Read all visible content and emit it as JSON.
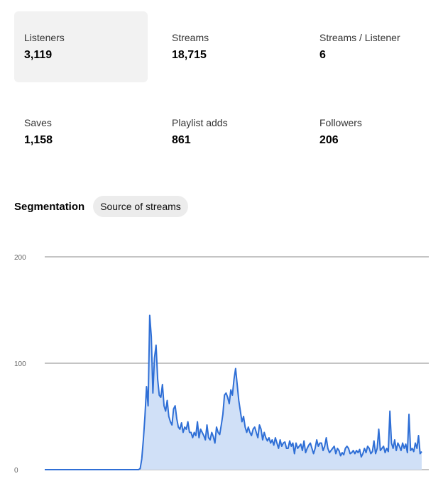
{
  "stats": [
    {
      "label": "Listeners",
      "value": "3,119",
      "selected": true
    },
    {
      "label": "Streams",
      "value": "18,715"
    },
    {
      "label": "Streams / Listener",
      "value": "6"
    },
    {
      "label": "Saves",
      "value": "1,158"
    },
    {
      "label": "Playlist adds",
      "value": "861"
    },
    {
      "label": "Followers",
      "value": "206"
    }
  ],
  "segmentation": {
    "title": "Segmentation",
    "chip_label": "Source of streams"
  },
  "colors": {
    "line": "#2f6fd6",
    "fill": "#d0e0f7",
    "grid": "#888888",
    "selected_card": "#f2f2f2"
  },
  "chart_data": {
    "type": "area",
    "title": "",
    "xlabel": "",
    "ylabel": "",
    "ylim": [
      0,
      200
    ],
    "yticks": [
      "0",
      "100",
      "200"
    ],
    "grid": true,
    "series": [
      {
        "values": [
          0,
          0,
          0,
          0,
          0,
          0,
          0,
          0,
          0,
          0,
          0,
          0,
          0,
          0,
          0,
          0,
          0,
          0,
          0,
          0,
          0,
          0,
          0,
          0,
          0,
          0,
          0,
          0,
          0,
          0,
          0,
          0,
          0,
          0,
          0,
          0,
          0,
          0,
          0,
          0,
          0,
          0,
          0,
          0,
          0,
          0,
          0,
          0,
          0,
          0,
          0,
          0,
          0,
          0,
          0,
          0,
          0,
          0,
          0,
          0,
          1,
          10,
          28,
          50,
          78,
          60,
          145,
          125,
          72,
          105,
          117,
          85,
          70,
          68,
          80,
          60,
          55,
          65,
          50,
          45,
          42,
          57,
          60,
          48,
          40,
          38,
          44,
          35,
          40,
          38,
          45,
          35,
          35,
          30,
          35,
          32,
          45,
          30,
          38,
          35,
          32,
          28,
          42,
          30,
          28,
          35,
          31,
          25,
          40,
          35,
          33,
          42,
          52,
          70,
          72,
          68,
          62,
          75,
          70,
          85,
          95,
          80,
          65,
          55,
          45,
          50,
          40,
          35,
          40,
          35,
          32,
          38,
          40,
          35,
          30,
          42,
          38,
          28,
          35,
          30,
          27,
          30,
          25,
          28,
          23,
          30,
          25,
          20,
          28,
          22,
          25,
          26,
          20,
          20,
          27,
          22,
          25,
          15,
          25,
          20,
          22,
          24,
          18,
          27,
          16,
          20,
          23,
          25,
          20,
          15,
          20,
          28,
          22,
          25,
          25,
          18,
          22,
          30,
          20,
          16,
          18,
          20,
          22,
          15,
          20,
          18,
          13,
          16,
          14,
          20,
          22,
          20,
          15,
          16,
          18,
          15,
          18,
          16,
          19,
          12,
          15,
          20,
          16,
          22,
          20,
          15,
          17,
          27,
          15,
          20,
          38,
          18,
          20,
          22,
          16,
          20,
          17,
          55,
          25,
          20,
          28,
          18,
          25,
          22,
          18,
          25,
          20,
          24,
          16,
          52,
          18,
          20,
          17,
          25,
          20,
          32,
          15,
          17
        ]
      }
    ]
  }
}
